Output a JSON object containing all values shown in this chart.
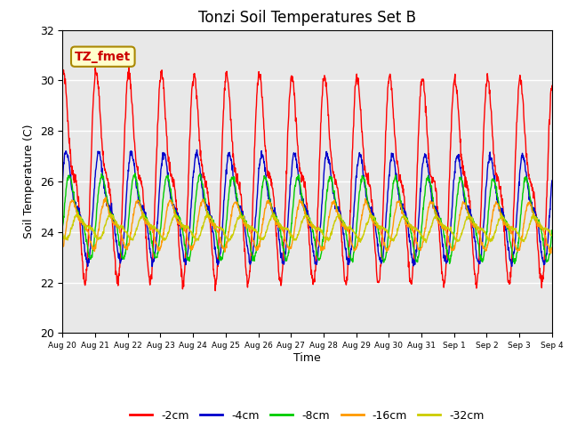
{
  "title": "Tonzi Soil Temperatures Set B",
  "xlabel": "Time",
  "ylabel": "Soil Temperature (C)",
  "ylim": [
    20,
    32
  ],
  "yticks": [
    20,
    22,
    24,
    26,
    28,
    30,
    32
  ],
  "annotation_text": "TZ_fmet",
  "annotation_color": "#cc0000",
  "annotation_bg": "#ffffcc",
  "annotation_border": "#aa8800",
  "line_colors": [
    "#ff0000",
    "#0000cc",
    "#00cc00",
    "#ff9900",
    "#cccc00"
  ],
  "line_labels": [
    "-2cm",
    "-4cm",
    "-8cm",
    "-16cm",
    "-32cm"
  ],
  "bg_color": "#e8e8e8",
  "xtick_labels": [
    "Aug 20",
    "Aug 21",
    "Aug 22",
    "Aug 23",
    "Aug 24",
    "Aug 25",
    "Aug 26",
    "Aug 27",
    "Aug 28",
    "Aug 29",
    "Aug 30",
    "Aug 31",
    "Sep 1",
    "Sep 2",
    "Sep 3",
    "Sep 4"
  ],
  "samples_per_day": 96,
  "mean_2cm": 26.2,
  "amp_2cm": 4.8,
  "phase_2cm": 0.9,
  "mean_4cm": 25.0,
  "amp_4cm": 2.5,
  "phase_4cm": 0.4,
  "mean_8cm": 24.6,
  "amp_8cm": 1.9,
  "phase_8cm": -0.2,
  "mean_16cm": 24.3,
  "amp_16cm": 1.1,
  "phase_16cm": -0.8,
  "mean_32cm": 24.2,
  "amp_32cm": 0.55,
  "phase_32cm": -1.8,
  "decay_2cm": 0.05,
  "decay_4cm": 0.03,
  "decay_8cm": 0.025,
  "decay_16cm": 0.02,
  "decay_32cm": 0.015
}
